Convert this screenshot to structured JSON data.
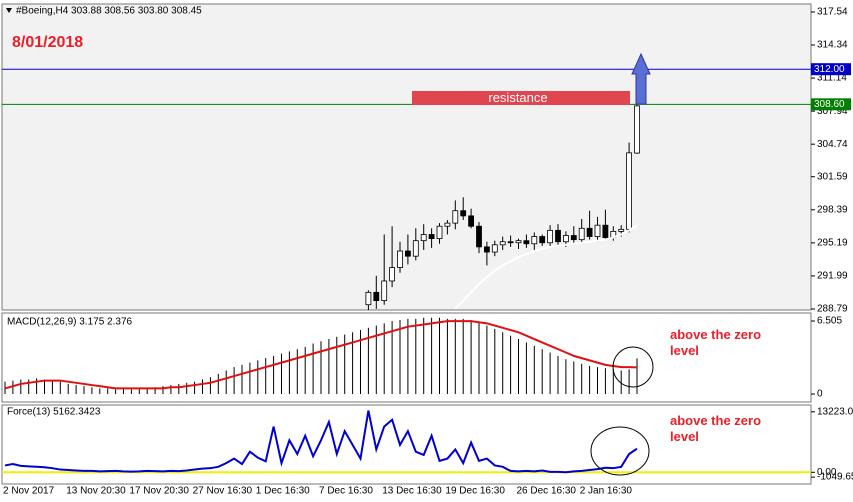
{
  "chart_data": [
    {
      "type": "candlestick",
      "title": "#Boeing,H4  303.88 308.56 303.80 308.45",
      "annotation": "8/01/2018",
      "resistance_label": "resistance",
      "categories": [
        "2 Nov 2017",
        null,
        null,
        null,
        null,
        null,
        null,
        null,
        "13 Nov 20:30",
        null,
        null,
        null,
        null,
        null,
        null,
        null,
        "17 Nov 20:30",
        null,
        null,
        null,
        null,
        null,
        null,
        null,
        "27 Nov 16:30",
        null,
        null,
        null,
        null,
        null,
        null,
        null,
        "1 Dec 16:30",
        null,
        null,
        null,
        null,
        null,
        null,
        null,
        "7 Dec 16:30",
        null,
        null,
        null,
        null,
        null,
        null,
        null,
        "13 Dec 16:30",
        null,
        null,
        null,
        null,
        null,
        null,
        null,
        "19 Dec 16:30",
        null,
        null,
        null,
        null,
        null,
        null,
        null,
        null,
        "26 Dec 16:30",
        null,
        null,
        null,
        null,
        null,
        null,
        null,
        "2 Jan 16:30",
        null,
        null,
        null,
        null,
        null,
        null,
        null
      ],
      "open": [
        null,
        null,
        null,
        null,
        null,
        null,
        null,
        null,
        null,
        null,
        null,
        null,
        null,
        null,
        null,
        null,
        null,
        null,
        null,
        null,
        null,
        null,
        null,
        null,
        null,
        null,
        null,
        null,
        null,
        null,
        null,
        null,
        null,
        null,
        null,
        null,
        null,
        null,
        null,
        null,
        null,
        null,
        null,
        null,
        null,
        null,
        289.2,
        290.4,
        289.6,
        291.5,
        292.8,
        294.4,
        293.9,
        295.4,
        296.0,
        295.6,
        296.8,
        297.1,
        298.3,
        297.8,
        296.8,
        294.8,
        294.3,
        295.0,
        295.3,
        295.2,
        295.4,
        295.1,
        295.8,
        295.2,
        296.4,
        295.3,
        295.9,
        295.5,
        296.6,
        295.8,
        296.9,
        295.7,
        296.3,
        296.5,
        303.88
      ],
      "high": [
        null,
        null,
        null,
        null,
        null,
        null,
        null,
        null,
        null,
        null,
        null,
        null,
        null,
        null,
        null,
        null,
        null,
        null,
        null,
        null,
        null,
        null,
        null,
        null,
        null,
        null,
        null,
        null,
        null,
        null,
        null,
        null,
        null,
        null,
        null,
        null,
        null,
        null,
        null,
        null,
        null,
        null,
        null,
        null,
        null,
        null,
        290.6,
        292.0,
        296.0,
        296.8,
        295.3,
        296.0,
        296.6,
        297.0,
        296.6,
        297.1,
        297.4,
        299.3,
        299.6,
        298.5,
        297.2,
        295.3,
        295.4,
        295.8,
        295.9,
        295.6,
        296.0,
        296.2,
        296.0,
        296.9,
        297.0,
        296.3,
        296.8,
        297.5,
        298.3,
        297.7,
        298.4,
        296.8,
        296.9,
        304.9,
        308.56
      ],
      "low": [
        null,
        null,
        null,
        null,
        null,
        null,
        null,
        null,
        null,
        null,
        null,
        null,
        null,
        null,
        null,
        null,
        null,
        null,
        null,
        null,
        null,
        null,
        null,
        null,
        null,
        null,
        null,
        null,
        null,
        null,
        null,
        null,
        null,
        null,
        null,
        null,
        null,
        null,
        null,
        null,
        null,
        null,
        null,
        null,
        null,
        null,
        287.5,
        288.8,
        289.2,
        290.9,
        292.3,
        293.1,
        293.5,
        294.5,
        294.7,
        295.1,
        296.0,
        296.5,
        297.4,
        296.6,
        294.2,
        293.0,
        293.9,
        294.5,
        294.8,
        294.6,
        294.7,
        294.5,
        294.9,
        294.8,
        295.0,
        294.8,
        295.2,
        295.1,
        295.5,
        295.3,
        295.5,
        295.4,
        295.8,
        296.2,
        303.8
      ],
      "close": [
        null,
        null,
        null,
        null,
        null,
        null,
        null,
        null,
        null,
        null,
        null,
        null,
        null,
        null,
        null,
        null,
        null,
        null,
        null,
        null,
        null,
        null,
        null,
        null,
        null,
        null,
        null,
        null,
        null,
        null,
        null,
        null,
        null,
        null,
        null,
        null,
        null,
        null,
        null,
        null,
        null,
        null,
        null,
        null,
        null,
        null,
        290.4,
        289.6,
        291.5,
        292.8,
        294.4,
        293.9,
        295.4,
        296.0,
        295.6,
        296.8,
        297.1,
        298.3,
        297.8,
        296.8,
        294.8,
        294.3,
        295.0,
        295.3,
        295.2,
        295.4,
        295.1,
        295.8,
        295.2,
        296.4,
        295.3,
        295.9,
        295.5,
        296.6,
        295.8,
        296.9,
        295.7,
        296.3,
        296.5,
        303.9,
        308.45
      ],
      "ma": [
        null,
        null,
        null,
        null,
        null,
        null,
        null,
        null,
        null,
        null,
        null,
        null,
        null,
        null,
        null,
        null,
        null,
        null,
        null,
        null,
        null,
        null,
        null,
        null,
        null,
        null,
        null,
        null,
        null,
        null,
        null,
        null,
        null,
        null,
        null,
        null,
        null,
        null,
        null,
        null,
        null,
        null,
        null,
        null,
        null,
        null,
        null,
        null,
        null,
        null,
        null,
        null,
        null,
        null,
        null,
        null,
        null,
        288.8,
        289.6,
        290.4,
        291.2,
        291.9,
        292.5,
        293.0,
        293.4,
        293.8,
        294.1,
        294.4,
        294.6,
        294.8,
        294.9,
        295.0,
        295.1,
        295.2,
        295.3,
        295.4,
        295.5,
        295.7,
        296.0,
        296.4,
        296.9
      ],
      "up_color": "#ffffff",
      "down_color": "#000000",
      "ma_color": "#ffffff",
      "ylim": [
        288.69,
        318.31
      ],
      "yticks": [
        317.54,
        314.34,
        311.14,
        307.94,
        304.74,
        301.59,
        298.39,
        295.19,
        291.99,
        288.79
      ],
      "levels": [
        {
          "value": 312.0,
          "label": "312.00",
          "color": "#0000c8"
        },
        {
          "value": 308.6,
          "label": "308.60",
          "color": "#008000"
        }
      ]
    },
    {
      "type": "macd",
      "title": "MACD(12,26,9) 3.175 2.376",
      "annotation": "above the zero level",
      "values": [
        1.1,
        1.2,
        1.3,
        1.3,
        1.4,
        1.3,
        1.2,
        1.1,
        0.9,
        0.8,
        0.7,
        0.6,
        0.5,
        0.5,
        0.4,
        0.4,
        0.4,
        0.5,
        0.5,
        0.6,
        0.7,
        0.8,
        0.9,
        1.0,
        1.1,
        1.3,
        1.5,
        1.8,
        2.1,
        2.4,
        2.6,
        2.8,
        3.0,
        3.2,
        3.4,
        3.6,
        3.8,
        4.0,
        4.2,
        4.5,
        4.7,
        4.9,
        5.1,
        5.3,
        5.5,
        5.7,
        5.9,
        6.1,
        6.3,
        6.5,
        6.6,
        6.7,
        6.7,
        6.8,
        6.8,
        6.8,
        6.7,
        6.7,
        6.7,
        6.6,
        6.4,
        6.1,
        5.8,
        5.5,
        5.2,
        4.9,
        4.6,
        4.3,
        4.0,
        3.7,
        3.4,
        3.1,
        2.9,
        2.7,
        2.5,
        2.4,
        2.3,
        2.2,
        2.1,
        2.2,
        3.175
      ],
      "signal": [
        0.5,
        0.7,
        0.9,
        1.0,
        1.1,
        1.2,
        1.2,
        1.2,
        1.1,
        1.0,
        0.9,
        0.8,
        0.7,
        0.6,
        0.5,
        0.5,
        0.5,
        0.5,
        0.5,
        0.5,
        0.5,
        0.6,
        0.6,
        0.7,
        0.8,
        0.9,
        1.0,
        1.2,
        1.4,
        1.6,
        1.8,
        2.0,
        2.2,
        2.4,
        2.6,
        2.8,
        3.0,
        3.2,
        3.4,
        3.6,
        3.8,
        4.0,
        4.2,
        4.4,
        4.6,
        4.8,
        5.0,
        5.2,
        5.4,
        5.6,
        5.8,
        6.0,
        6.1,
        6.2,
        6.3,
        6.4,
        6.5,
        6.5,
        6.5,
        6.5,
        6.4,
        6.3,
        6.1,
        5.9,
        5.7,
        5.5,
        5.2,
        4.9,
        4.6,
        4.3,
        4.0,
        3.7,
        3.4,
        3.2,
        3.0,
        2.8,
        2.6,
        2.5,
        2.4,
        2.4,
        2.376
      ],
      "color": "#000000",
      "signal_color": "#e01010",
      "ylim": [
        -0.71,
        7.22
      ],
      "yticks": [
        6.505,
        0
      ]
    },
    {
      "type": "line",
      "title": "Force(13) 5162.3423",
      "annotation": "above the zero level",
      "values": [
        1500,
        1800,
        1400,
        1300,
        1200,
        1100,
        900,
        600,
        500,
        400,
        300,
        300,
        200,
        250,
        300,
        200,
        150,
        200,
        300,
        250,
        200,
        300,
        250,
        400,
        600,
        800,
        900,
        1200,
        2000,
        3000,
        1800,
        4500,
        3200,
        2400,
        10000,
        2000,
        7000,
        4000,
        8000,
        3500,
        7000,
        11000,
        4000,
        9000,
        6000,
        3000,
        13500,
        5000,
        10000,
        11500,
        6000,
        9000,
        4500,
        3800,
        8000,
        2500,
        3000,
        5000,
        2000,
        6500,
        2500,
        3000,
        1500,
        1200,
        300,
        200,
        300,
        200,
        400,
        100,
        100,
        0,
        200,
        300,
        500,
        700,
        1000,
        900,
        1200,
        4000,
        5162.3423
      ],
      "color": "#0000d0",
      "level": 0,
      "level_color": "#f0f000",
      "ylim": [
        -2560,
        14716
      ],
      "yticks": [
        {
          "value": 13223,
          "label": "13223.00"
        },
        {
          "value": 0,
          "label": "0.00"
        },
        {
          "value": -1049.65,
          "label": "-1049.65"
        }
      ]
    }
  ]
}
